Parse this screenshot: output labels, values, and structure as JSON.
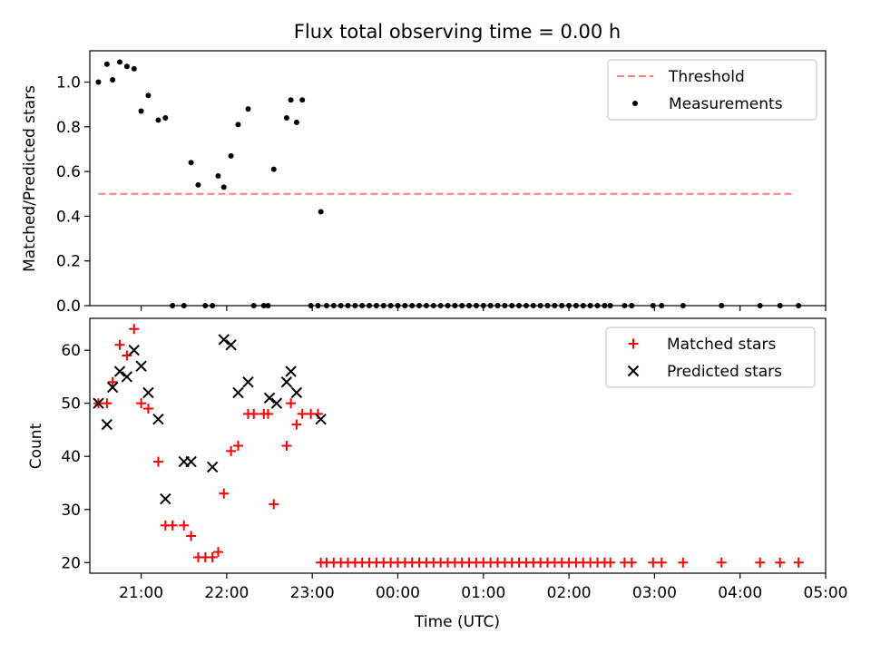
{
  "figure": {
    "title": "Flux total observing time = 0.00 h",
    "xlabel": "Time (UTC)"
  },
  "x_ticks": [
    "21:00",
    "22:00",
    "23:00",
    "00:00",
    "01:00",
    "02:00",
    "03:00",
    "04:00",
    "05:00"
  ],
  "colors": {
    "threshold": "#ff7f7f",
    "measurements": "#000000",
    "matched": "#ff0000",
    "predicted": "#000000"
  },
  "chart_data": [
    {
      "type": "scatter",
      "ylabel": "Matched/Predicted stars",
      "xlim": [
        "20:24",
        "05:00"
      ],
      "ylim": [
        0,
        1.14
      ],
      "y_ticks": [
        "0.0",
        "0.2",
        "0.4",
        "0.6",
        "0.8",
        "1.0"
      ],
      "legend_position": "top-right",
      "threshold": {
        "name": "Threshold",
        "y": 0.5,
        "x": [
          "20:30",
          "04:37"
        ]
      },
      "series": [
        {
          "name": "Measurements",
          "x": [
            "20:30",
            "20:36",
            "20:40",
            "20:45",
            "20:50",
            "20:55",
            "21:00",
            "21:05",
            "21:12",
            "21:17",
            "21:22",
            "21:30",
            "21:35",
            "21:40",
            "21:45",
            "21:50",
            "21:54",
            "21:58",
            "22:03",
            "22:08",
            "22:15",
            "22:19",
            "22:26",
            "22:29",
            "22:33",
            "22:42",
            "22:45",
            "22:49",
            "22:53",
            "22:59",
            "23:04",
            "23:06",
            "23:10",
            "23:15",
            "23:20",
            "23:25",
            "23:30",
            "23:35",
            "23:40",
            "23:45",
            "23:50",
            "23:55",
            "00:00",
            "00:05",
            "00:10",
            "00:15",
            "00:20",
            "00:25",
            "00:30",
            "00:35",
            "00:40",
            "00:45",
            "00:50",
            "00:55",
            "01:00",
            "01:05",
            "01:10",
            "01:15",
            "01:20",
            "01:25",
            "01:30",
            "01:35",
            "01:40",
            "01:45",
            "01:50",
            "01:55",
            "02:00",
            "02:05",
            "02:10",
            "02:15",
            "02:20",
            "02:25",
            "02:29",
            "02:39",
            "02:44",
            "02:59",
            "03:05",
            "03:20",
            "03:47",
            "04:14",
            "04:28",
            "04:41"
          ],
          "y": [
            1.0,
            1.08,
            1.01,
            1.09,
            1.07,
            1.06,
            0.87,
            0.94,
            0.83,
            0.84,
            0.0,
            0.0,
            0.64,
            0.54,
            0.0,
            0.0,
            0.58,
            0.53,
            0.67,
            0.81,
            0.88,
            0.0,
            0.0,
            0.0,
            0.61,
            0.84,
            0.92,
            0.82,
            0.92,
            0.0,
            0.0,
            0.42,
            0.0,
            0.0,
            0.0,
            0.0,
            0.0,
            0.0,
            0.0,
            0.0,
            0.0,
            0.0,
            0.0,
            0.0,
            0.0,
            0.0,
            0.0,
            0.0,
            0.0,
            0.0,
            0.0,
            0.0,
            0.0,
            0.0,
            0.0,
            0.0,
            0.0,
            0.0,
            0.0,
            0.0,
            0.0,
            0.0,
            0.0,
            0.0,
            0.0,
            0.0,
            0.0,
            0.0,
            0.0,
            0.0,
            0.0,
            0.0,
            0.0,
            0.0,
            0.0,
            0.0,
            0.0,
            0.0,
            0.0,
            0.0,
            0.0,
            0.0
          ]
        }
      ]
    },
    {
      "type": "scatter",
      "ylabel": "Count",
      "xlim": [
        "20:24",
        "05:00"
      ],
      "ylim": [
        18,
        66
      ],
      "y_ticks": [
        "20",
        "30",
        "40",
        "50",
        "60"
      ],
      "legend_position": "top-right",
      "series": [
        {
          "name": "Matched stars",
          "x": [
            "20:30",
            "20:36",
            "20:40",
            "20:45",
            "20:50",
            "20:55",
            "21:00",
            "21:05",
            "21:12",
            "21:17",
            "21:22",
            "21:30",
            "21:35",
            "21:40",
            "21:45",
            "21:50",
            "21:54",
            "21:58",
            "22:03",
            "22:08",
            "22:15",
            "22:19",
            "22:26",
            "22:29",
            "22:33",
            "22:42",
            "22:45",
            "22:49",
            "22:53",
            "22:59",
            "23:04",
            "23:06",
            "23:10",
            "23:15",
            "23:20",
            "23:25",
            "23:30",
            "23:35",
            "23:40",
            "23:45",
            "23:50",
            "23:55",
            "00:00",
            "00:05",
            "00:10",
            "00:15",
            "00:20",
            "00:25",
            "00:30",
            "00:35",
            "00:40",
            "00:45",
            "00:50",
            "00:55",
            "01:00",
            "01:05",
            "01:10",
            "01:15",
            "01:20",
            "01:25",
            "01:30",
            "01:35",
            "01:40",
            "01:45",
            "01:50",
            "01:55",
            "02:00",
            "02:05",
            "02:10",
            "02:15",
            "02:20",
            "02:25",
            "02:29",
            "02:39",
            "02:44",
            "02:59",
            "03:05",
            "03:20",
            "03:47",
            "04:14",
            "04:28",
            "04:41"
          ],
          "y": [
            50,
            50,
            54,
            61,
            59,
            64,
            50,
            49,
            39,
            27,
            27,
            27,
            25,
            21,
            21,
            21,
            22,
            33,
            41,
            42,
            48,
            48,
            48,
            48,
            31,
            42,
            50,
            46,
            48,
            48,
            48,
            20,
            20,
            20,
            20,
            20,
            20,
            20,
            20,
            20,
            20,
            20,
            20,
            20,
            20,
            20,
            20,
            20,
            20,
            20,
            20,
            20,
            20,
            20,
            20,
            20,
            20,
            20,
            20,
            20,
            20,
            20,
            20,
            20,
            20,
            20,
            20,
            20,
            20,
            20,
            20,
            20,
            20,
            20,
            20,
            20,
            20,
            20,
            20,
            20,
            20,
            20
          ]
        },
        {
          "name": "Predicted stars",
          "x": [
            "20:30",
            "20:36",
            "20:40",
            "20:45",
            "20:50",
            "20:55",
            "21:00",
            "21:05",
            "21:12",
            "21:17",
            "21:30",
            "21:35",
            "21:50",
            "21:58",
            "22:03",
            "22:08",
            "22:15",
            "22:30",
            "22:35",
            "22:42",
            "22:45",
            "22:49",
            "23:06"
          ],
          "y": [
            50,
            46,
            53,
            56,
            55,
            60,
            57,
            52,
            47,
            32,
            39,
            39,
            38,
            62,
            61,
            52,
            54,
            51,
            50,
            54,
            56,
            52,
            47
          ]
        }
      ]
    }
  ]
}
